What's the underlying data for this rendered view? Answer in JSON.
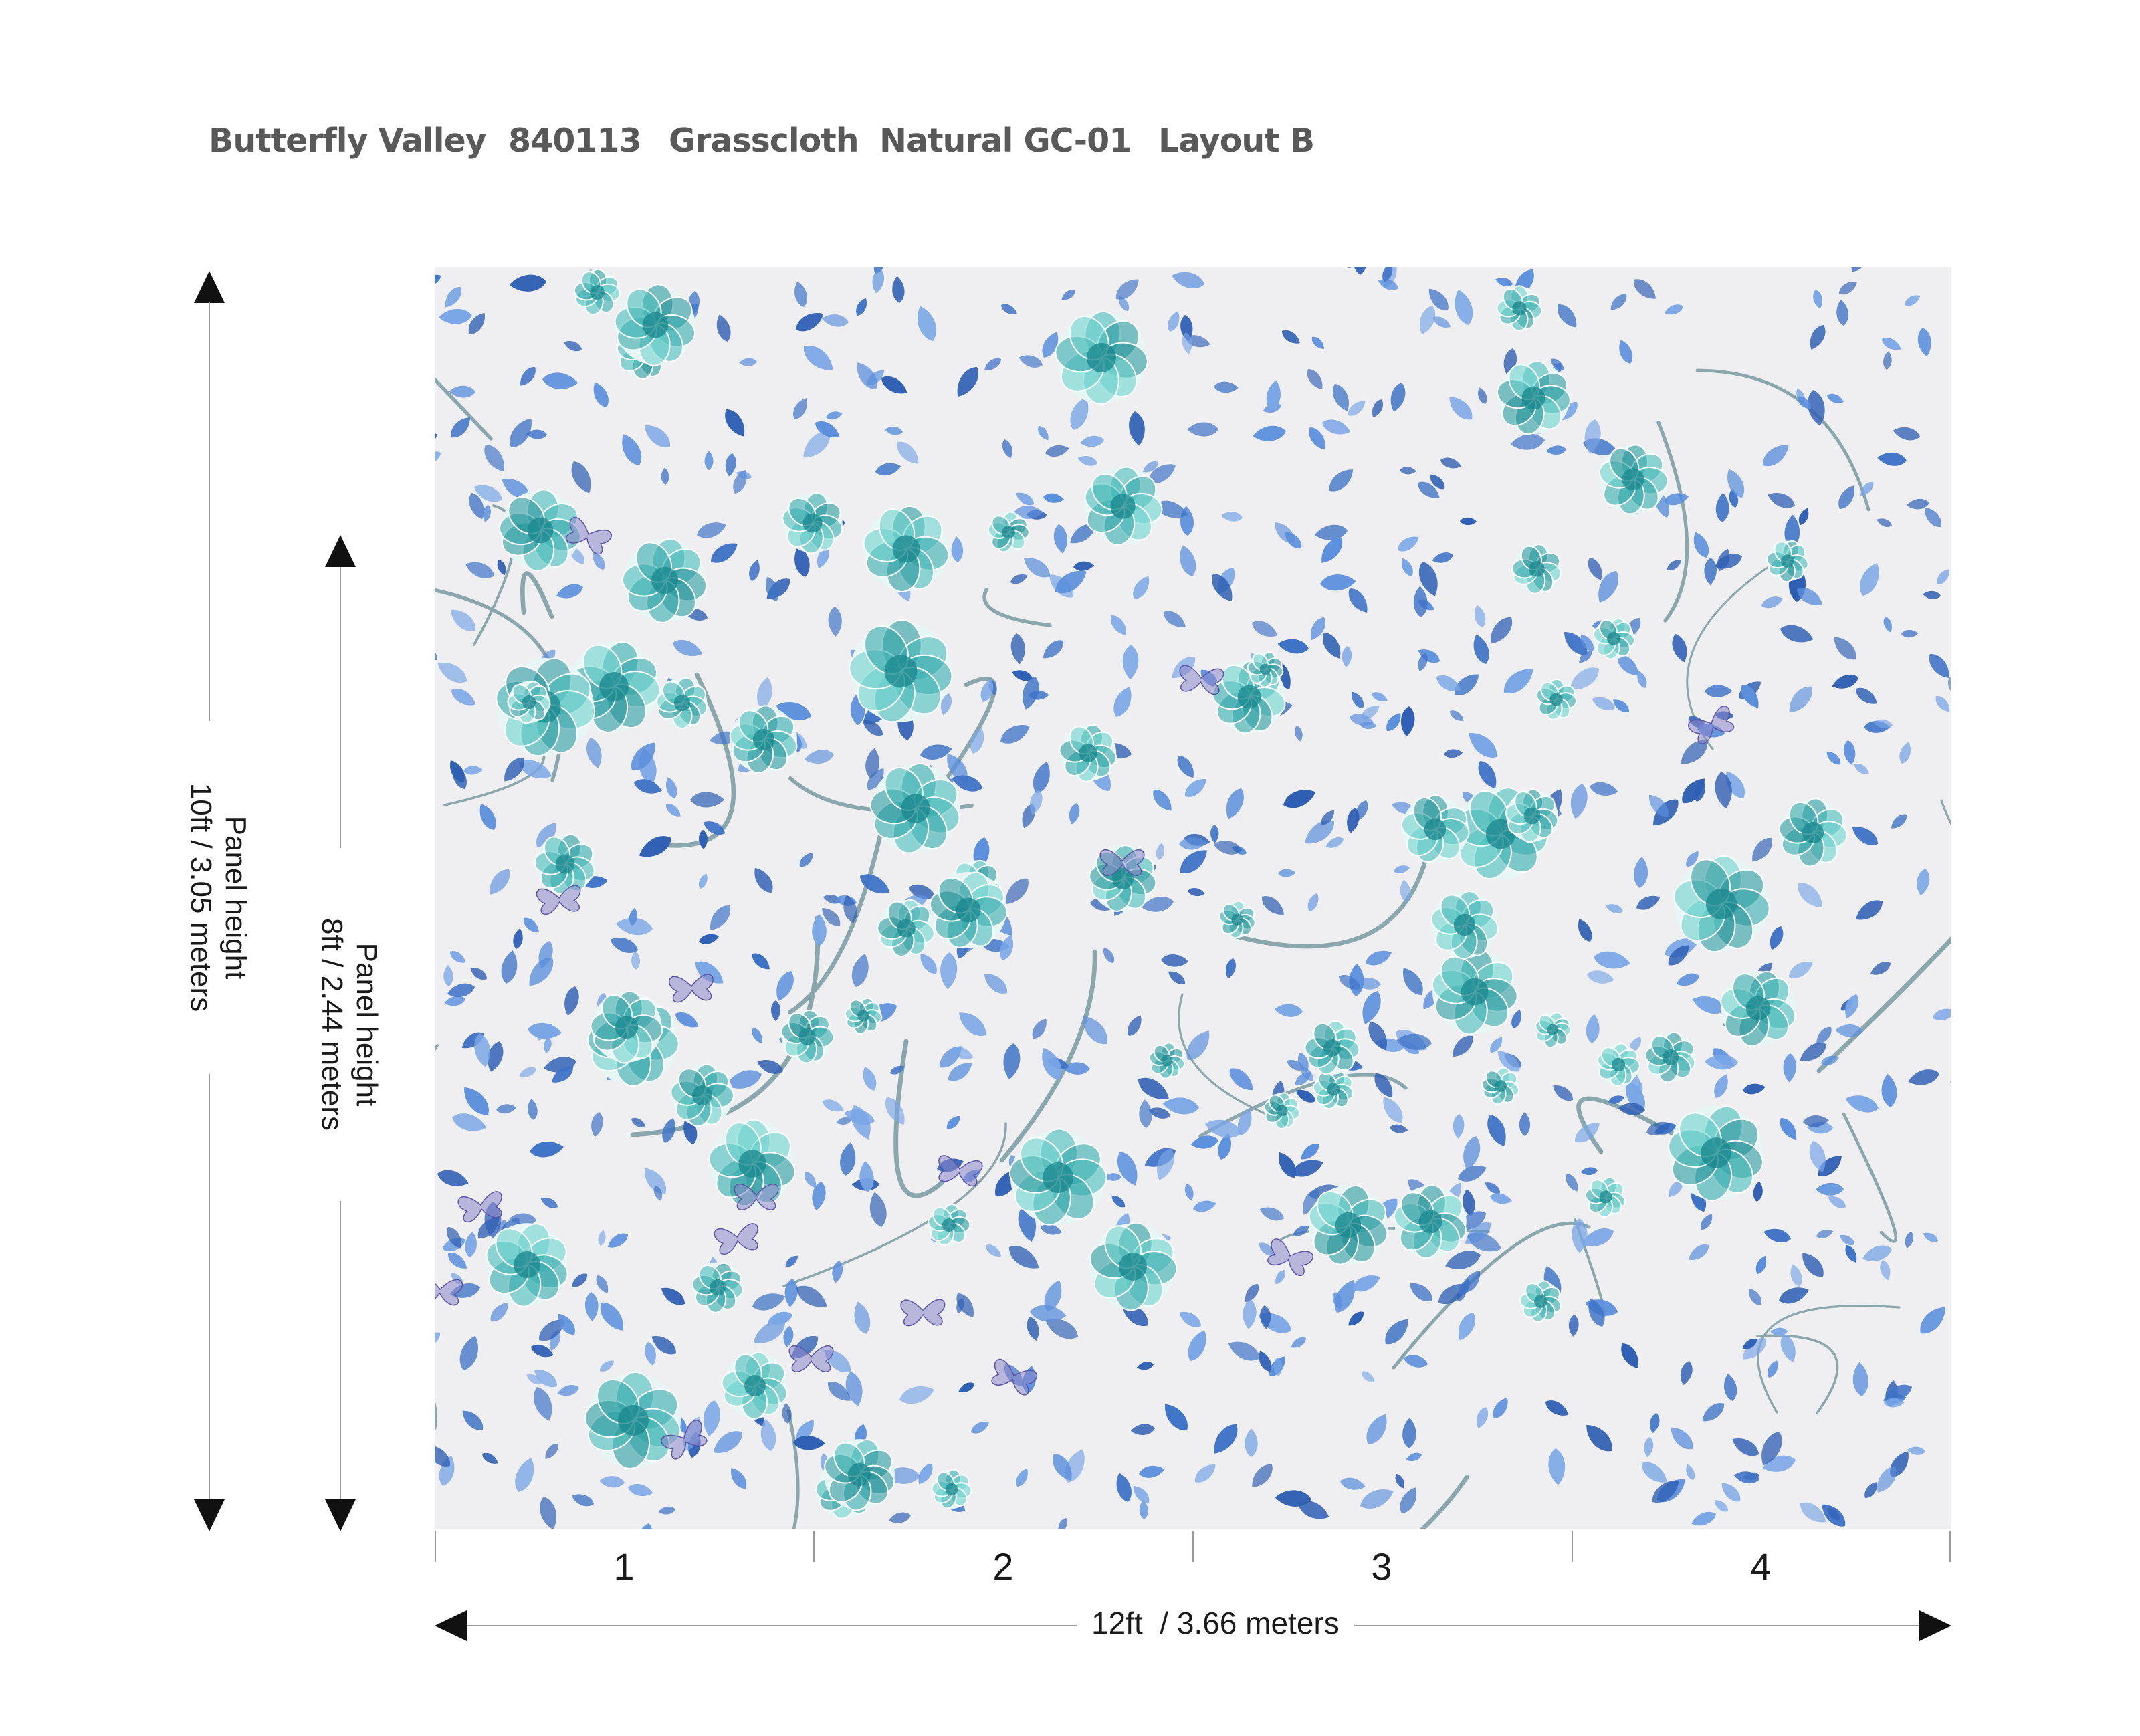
{
  "header": {
    "pattern_name": "Butterfly Valley",
    "pattern_code": "840113",
    "material": "Grasscloth",
    "colorway": "Natural GC-01",
    "layout": "Layout B"
  },
  "dimensions": {
    "outer_height_label": "Panel height",
    "outer_height_value": "10ft / 3.05 meters",
    "inner_height_label": "Panel height",
    "inner_height_value": "8ft / 2.44 meters",
    "width_value": "12ft  / 3.66 meters"
  },
  "panels": [
    "1",
    "2",
    "3",
    "4"
  ],
  "colors": {
    "background": "#efeff1",
    "leaf_blue": "#3f73c6",
    "flower_teal": "#3fb7b5",
    "butterfly": "#8d86c9",
    "header_text": "#595959"
  }
}
